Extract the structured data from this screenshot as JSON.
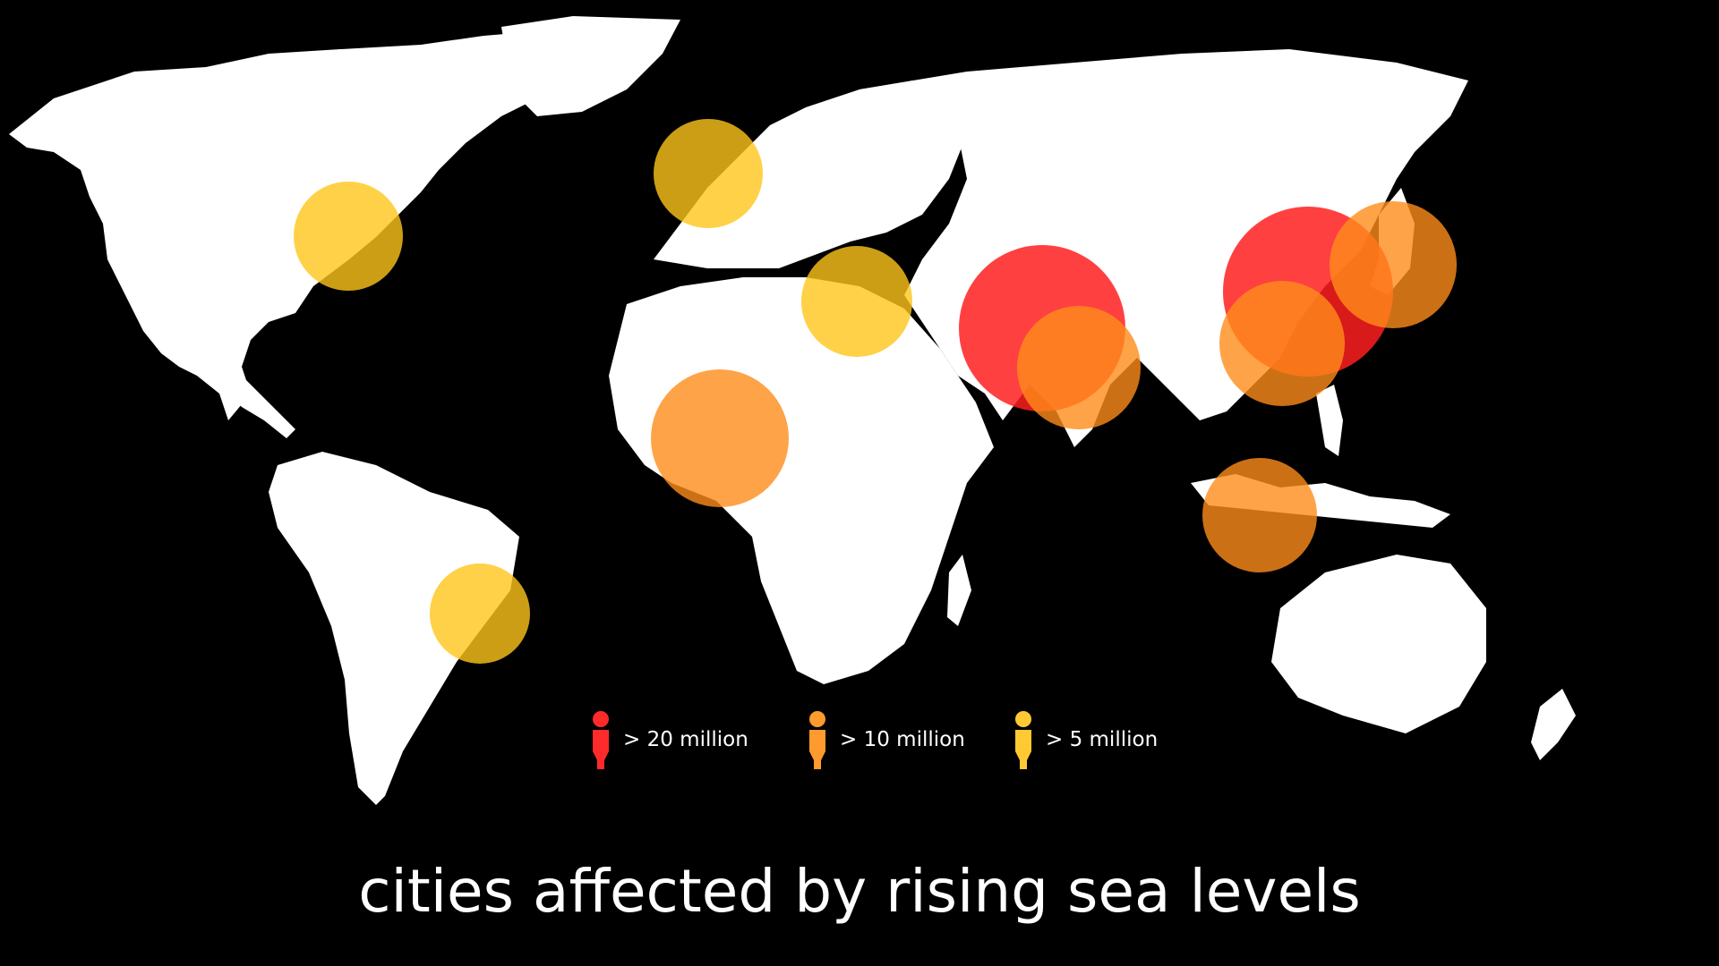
{
  "map": {
    "background": "#000000",
    "land_color": "#ffffff",
    "size_colors": {
      "over_20_million": "#ff1f1f",
      "over_10_million": "#ff8c1a",
      "over_5_million": "#ffc61a"
    },
    "cities": [
      {
        "region": "north-america-east-coast",
        "category": "over_5_million"
      },
      {
        "region": "south-america-brazil",
        "category": "over_5_million"
      },
      {
        "region": "europe-northwest",
        "category": "over_5_million"
      },
      {
        "region": "egypt-nile-delta",
        "category": "over_5_million"
      },
      {
        "region": "west-africa-coast",
        "category": "over_10_million"
      },
      {
        "region": "south-asia-arabian-sea",
        "category": "over_20_million"
      },
      {
        "region": "south-asia-bay-of-bengal",
        "category": "over_10_million"
      },
      {
        "region": "east-china",
        "category": "over_20_million"
      },
      {
        "region": "japan",
        "category": "over_10_million"
      },
      {
        "region": "south-china-vietnam",
        "category": "over_10_million"
      },
      {
        "region": "indonesia",
        "category": "over_10_million"
      }
    ]
  },
  "legend": [
    {
      "label": "> 20 million",
      "color": "#ff2a2a",
      "icon": "person-icon"
    },
    {
      "label": "> 10 million",
      "color": "#ff9a2e",
      "icon": "person-icon"
    },
    {
      "label": "> 5 million",
      "color": "#ffc933",
      "icon": "person-icon"
    }
  ],
  "caption": "cities affected by rising sea levels"
}
